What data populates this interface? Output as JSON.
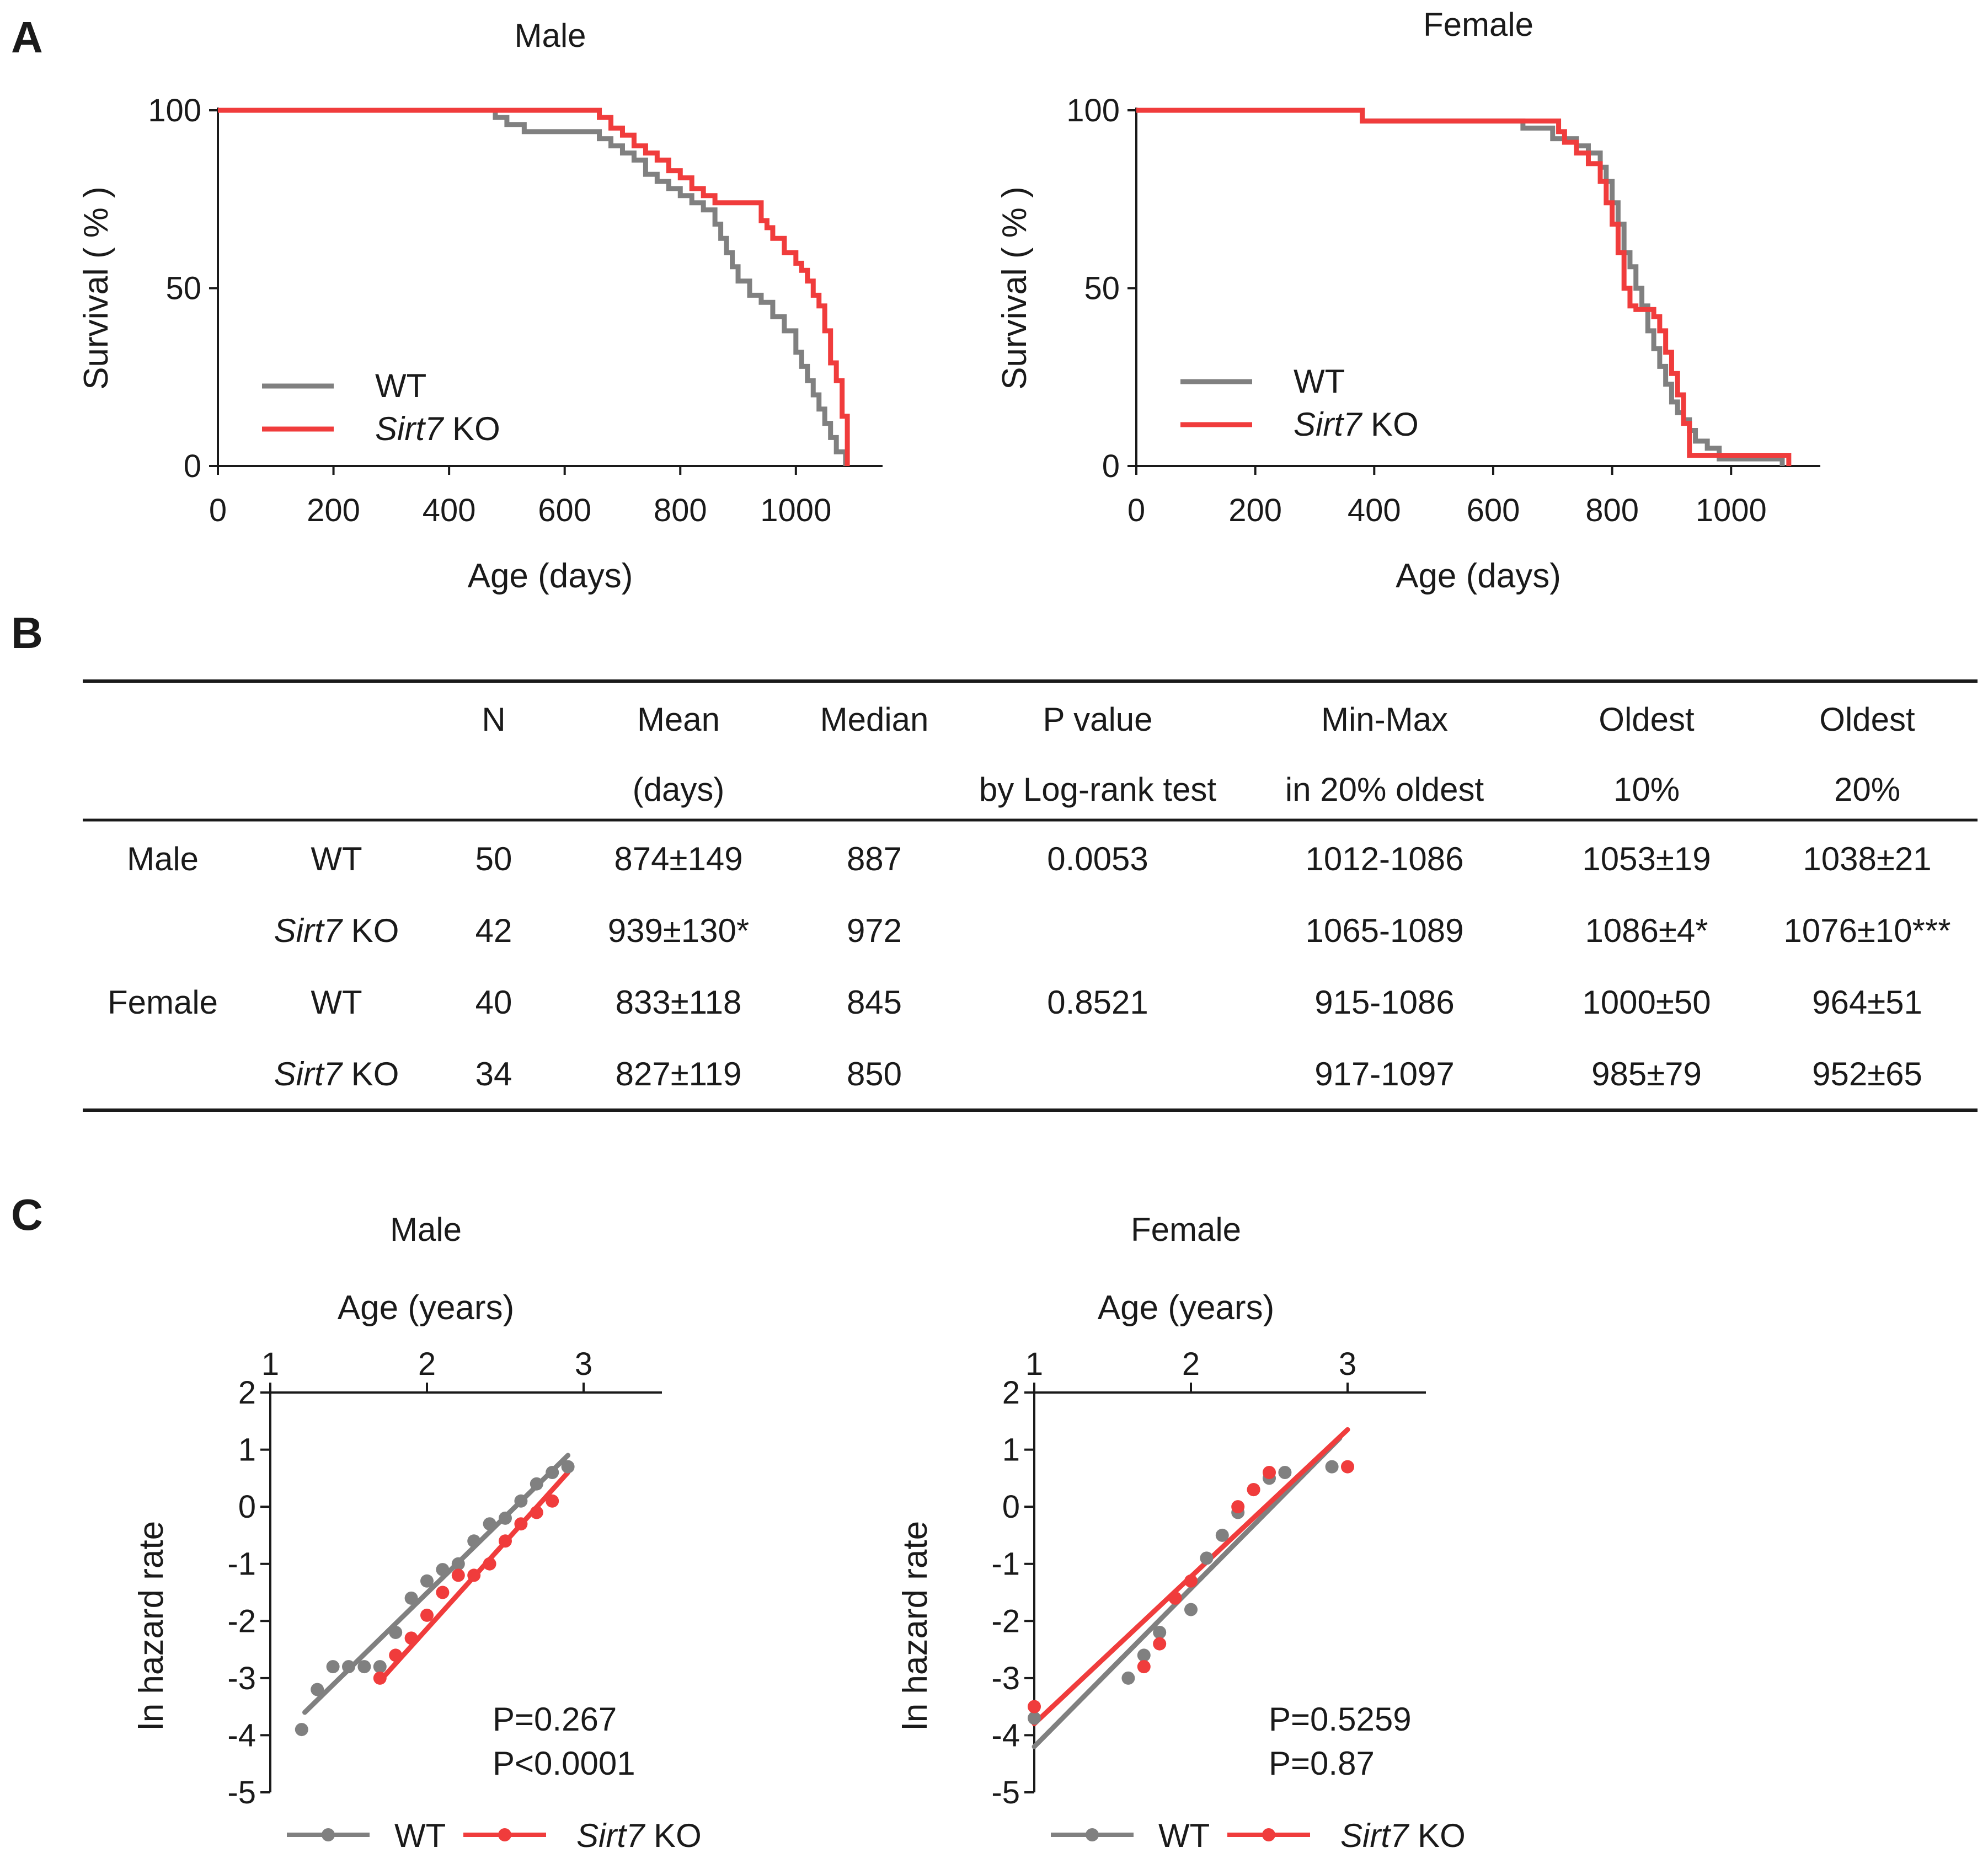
{
  "panels": {
    "a": "A",
    "b": "B",
    "c": "C"
  },
  "colors": {
    "wt": "#808080",
    "ko": "#f03c3c",
    "axis": "#1a1a1a"
  },
  "chart_data": [
    {
      "id": "survival_male",
      "type": "line",
      "step": true,
      "title": "Male",
      "xlabel": "Age (days)",
      "ylabel": "Survival ( % )",
      "xlim": [
        0,
        1150
      ],
      "ylim": [
        0,
        100
      ],
      "xticks": [
        0,
        200,
        400,
        600,
        800,
        1000
      ],
      "yticks": [
        0,
        50,
        100
      ],
      "legend": [
        {
          "name": "WT",
          "italic": ""
        },
        {
          "name": " KO",
          "italic": "Sirt7"
        }
      ],
      "series": [
        {
          "name": "WT",
          "x": [
            0,
            460,
            480,
            500,
            530,
            560,
            600,
            650,
            660,
            680,
            700,
            720,
            740,
            760,
            780,
            800,
            820,
            840,
            860,
            870,
            880,
            890,
            900,
            920,
            940,
            960,
            980,
            1000,
            1010,
            1020,
            1030,
            1040,
            1050,
            1060,
            1070,
            1086
          ],
          "y": [
            100,
            100,
            98,
            96,
            94,
            94,
            94,
            94,
            92,
            90,
            88,
            86,
            82,
            80,
            78,
            76,
            74,
            72,
            68,
            64,
            60,
            56,
            52,
            48,
            46,
            42,
            38,
            32,
            28,
            24,
            20,
            16,
            12,
            8,
            4,
            0
          ]
        },
        {
          "name": "Sirt7 KO",
          "x": [
            0,
            480,
            600,
            640,
            660,
            680,
            700,
            720,
            740,
            760,
            780,
            800,
            820,
            840,
            860,
            880,
            900,
            920,
            940,
            950,
            960,
            980,
            1000,
            1010,
            1020,
            1030,
            1040,
            1050,
            1060,
            1070,
            1080,
            1089
          ],
          "y": [
            100,
            100,
            100,
            100,
            98,
            95,
            93,
            90,
            88,
            86,
            83,
            81,
            78,
            76,
            74,
            74,
            74,
            74,
            69,
            67,
            64,
            60,
            57,
            55,
            52,
            48,
            45,
            38,
            29,
            24,
            14,
            0
          ]
        }
      ]
    },
    {
      "id": "survival_female",
      "type": "line",
      "step": true,
      "title": "Female",
      "xlabel": "Age (days)",
      "ylabel": "Survival ( % )",
      "xlim": [
        0,
        1150
      ],
      "ylim": [
        0,
        100
      ],
      "xticks": [
        0,
        200,
        400,
        600,
        800,
        1000
      ],
      "yticks": [
        0,
        50,
        100
      ],
      "legend": [
        {
          "name": "WT",
          "italic": ""
        },
        {
          "name": " KO",
          "italic": "Sirt7"
        }
      ],
      "series": [
        {
          "name": "WT",
          "x": [
            0,
            370,
            380,
            600,
            650,
            700,
            740,
            760,
            780,
            790,
            800,
            810,
            820,
            830,
            840,
            850,
            860,
            870,
            880,
            890,
            900,
            910,
            920,
            930,
            940,
            960,
            980,
            1086
          ],
          "y": [
            100,
            100,
            97,
            97,
            95,
            92,
            90,
            88,
            84,
            80,
            74,
            68,
            60,
            56,
            50,
            45,
            38,
            33,
            28,
            23,
            18,
            15,
            13,
            10,
            7,
            5,
            2,
            0
          ]
        },
        {
          "name": "Sirt7 KO",
          "x": [
            0,
            380,
            700,
            710,
            720,
            740,
            760,
            780,
            790,
            800,
            810,
            820,
            830,
            840,
            850,
            860,
            870,
            880,
            890,
            900,
            910,
            920,
            930,
            1097
          ],
          "y": [
            100,
            97,
            97,
            94,
            91,
            88,
            85,
            80,
            74,
            68,
            60,
            50,
            45,
            44,
            44,
            44,
            42,
            38,
            32,
            26,
            20,
            12,
            3,
            0
          ]
        }
      ]
    }
  ],
  "hazard_charts": [
    {
      "id": "hazard_male",
      "type": "scatter",
      "title": "Male",
      "top_axis_label": "Age (years)",
      "ylabel": "ln hazard rate",
      "xlim": [
        1,
        3.5
      ],
      "ylim": [
        -5,
        2
      ],
      "xticks": [
        1,
        2,
        3
      ],
      "yticks": [
        2,
        1,
        0,
        -1,
        -2,
        -3,
        -4,
        -5
      ],
      "pvalues": [
        "P=0.267",
        "P<0.0001"
      ],
      "legend": [
        {
          "name": "WT",
          "italic": ""
        },
        {
          "name": " KO",
          "italic": "Sirt7"
        }
      ],
      "series": [
        {
          "name": "WT",
          "x": [
            1.2,
            1.3,
            1.4,
            1.5,
            1.6,
            1.7,
            1.8,
            1.9,
            2.0,
            2.1,
            2.2,
            2.3,
            2.4,
            2.5,
            2.6,
            2.7,
            2.8,
            2.9
          ],
          "y": [
            -3.9,
            -3.2,
            -2.8,
            -2.8,
            -2.8,
            -2.8,
            -2.2,
            -1.6,
            -1.3,
            -1.1,
            -1.0,
            -0.6,
            -0.3,
            -0.2,
            0.1,
            0.4,
            0.6,
            0.7
          ],
          "fit": [
            [
              1.22,
              -3.6
            ],
            [
              2.9,
              0.9
            ]
          ]
        },
        {
          "name": "Sirt7 KO",
          "x": [
            1.7,
            1.8,
            1.9,
            2.0,
            2.1,
            2.2,
            2.3,
            2.4,
            2.5,
            2.6,
            2.7,
            2.8
          ],
          "y": [
            -3.0,
            -2.6,
            -2.3,
            -1.9,
            -1.5,
            -1.2,
            -1.2,
            -1.0,
            -0.6,
            -0.3,
            -0.1,
            0.1
          ],
          "fit": [
            [
              1.7,
              -3.05
            ],
            [
              2.9,
              0.6
            ]
          ]
        }
      ]
    },
    {
      "id": "hazard_female",
      "type": "scatter",
      "title": "Female",
      "top_axis_label": "Age (years)",
      "ylabel": "ln hazard rate",
      "xlim": [
        1,
        3.5
      ],
      "ylim": [
        -5,
        2
      ],
      "xticks": [
        1,
        2,
        3
      ],
      "yticks": [
        2,
        1,
        0,
        -1,
        -2,
        -3,
        -4,
        -5
      ],
      "pvalues": [
        "P=0.5259",
        "P=0.87"
      ],
      "legend": [
        {
          "name": "WT",
          "italic": ""
        },
        {
          "name": " KO",
          "italic": "Sirt7"
        }
      ],
      "series": [
        {
          "name": "WT",
          "x": [
            1.0,
            1.6,
            1.7,
            1.8,
            2.0,
            2.1,
            2.2,
            2.3,
            2.4,
            2.5,
            2.6,
            2.9
          ],
          "y": [
            -3.7,
            -3.0,
            -2.6,
            -2.2,
            -1.8,
            -0.9,
            -0.5,
            -0.1,
            0.3,
            0.5,
            0.6,
            0.7
          ],
          "fit": [
            [
              1.0,
              -4.2
            ],
            [
              2.95,
              1.2
            ]
          ]
        },
        {
          "name": "Sirt7 KO",
          "x": [
            1.0,
            1.7,
            1.8,
            1.9,
            2.0,
            2.3,
            2.4,
            2.5,
            3.0
          ],
          "y": [
            -3.5,
            -2.8,
            -2.4,
            -1.6,
            -1.3,
            0.0,
            0.3,
            0.6,
            0.7
          ],
          "fit": [
            [
              1.0,
              -3.8
            ],
            [
              3.0,
              1.35
            ]
          ]
        }
      ]
    }
  ],
  "table": {
    "header_row1": [
      "",
      "",
      "N",
      "Mean",
      "Median",
      "P value",
      "Min-Max",
      "Oldest",
      "Oldest"
    ],
    "header_row2": [
      "",
      "",
      "",
      "(days)",
      "",
      "by Log-rank test",
      "in 20% oldest",
      "10%",
      "20%"
    ],
    "rows": [
      {
        "sex": "Male",
        "genotype": "WT",
        "genotype_italic": "",
        "n": "50",
        "mean": "874±149",
        "median": "887",
        "p": "0.0053",
        "minmax": "1012-1086",
        "o10": "1053±19",
        "o20": "1038±21"
      },
      {
        "sex": "",
        "genotype": " KO",
        "genotype_italic": "Sirt7",
        "n": "42",
        "mean": "939±130*",
        "median": "972",
        "p": "",
        "minmax": "1065-1089",
        "o10": "1086±4*",
        "o20": "1076±10***"
      },
      {
        "sex": "Female",
        "genotype": "WT",
        "genotype_italic": "",
        "n": "40",
        "mean": "833±118",
        "median": "845",
        "p": "0.8521",
        "minmax": "915-1086",
        "o10": "1000±50",
        "o20": "964±51"
      },
      {
        "sex": "",
        "genotype": " KO",
        "genotype_italic": "Sirt7",
        "n": "34",
        "mean": "827±119",
        "median": "850",
        "p": "",
        "minmax": "917-1097",
        "o10": "985±79",
        "o20": "952±65"
      }
    ]
  }
}
